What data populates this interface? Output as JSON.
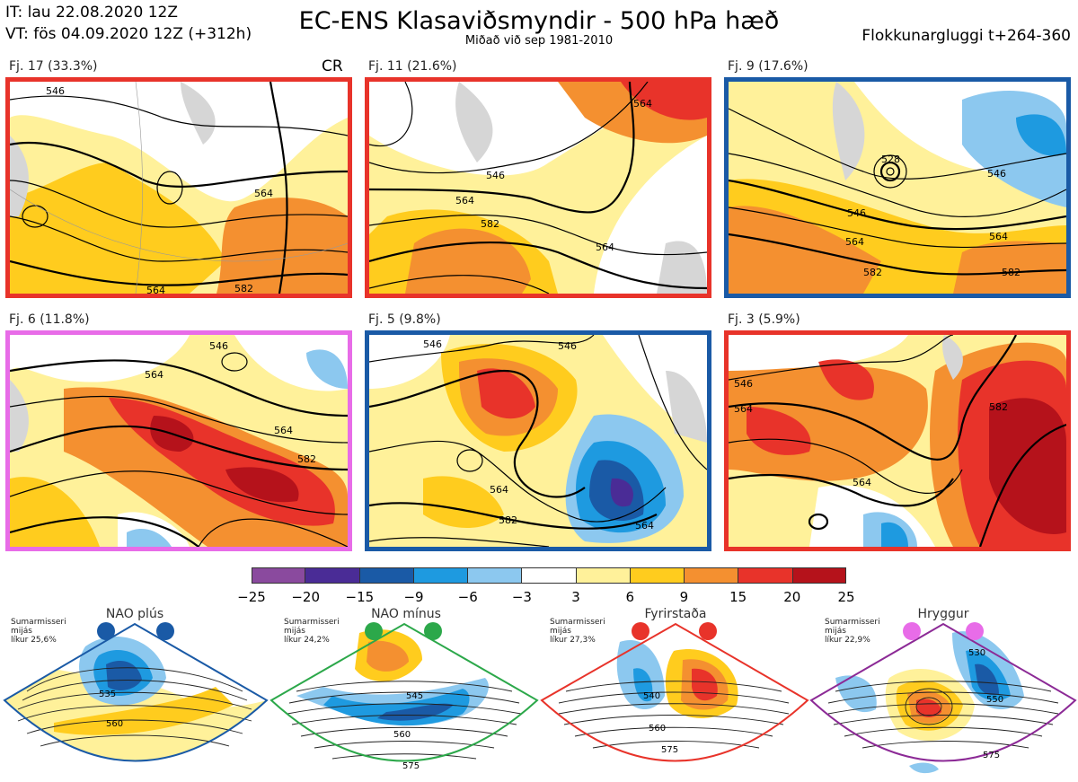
{
  "header": {
    "it_line": "IT: lau 22.08.2020 12Z",
    "vt_line": "VT: fös 04.09.2020 12Z  (+312h)",
    "title": "EC-ENS Klasaviðsmyndir - 500 hPa hæð",
    "subtitle": "Miðað við sep 1981-2010",
    "window": "Flokkunargluggi t+264-360"
  },
  "panels": [
    {
      "caption": "Fj. 17 (33.3%)",
      "border_color": "#e8332a",
      "tag": "CR",
      "contour_labels": [
        "546",
        "564",
        "564",
        "582"
      ]
    },
    {
      "caption": "Fj. 11 (21.6%)",
      "border_color": "#e8332a",
      "tag": "",
      "contour_labels": [
        "546",
        "564",
        "582",
        "564",
        "564"
      ]
    },
    {
      "caption": "Fj. 9 (17.6%)",
      "border_color": "#1a5aa6",
      "tag": "",
      "contour_labels": [
        "528",
        "546",
        "564",
        "582",
        "546",
        "564",
        "582"
      ]
    },
    {
      "caption": "Fj. 6 (11.8%)",
      "border_color": "#e86ce8",
      "tag": "",
      "contour_labels": [
        "564",
        "564",
        "582",
        "546"
      ]
    },
    {
      "caption": "Fj. 5 (9.8%)",
      "border_color": "#1a5aa6",
      "tag": "",
      "contour_labels": [
        "546",
        "564",
        "582",
        "564",
        "546"
      ]
    },
    {
      "caption": "Fj. 3 (5.9%)",
      "border_color": "#e8332a",
      "tag": "",
      "contour_labels": [
        "546",
        "564",
        "582",
        "564"
      ]
    }
  ],
  "colorbar": {
    "colors": [
      "#8a4a9e",
      "#4a2c96",
      "#1a5aa6",
      "#1e9ae0",
      "#8cc8ef",
      "#ffffff",
      "#fff19a",
      "#ffcc1e",
      "#f49030",
      "#e8332a",
      "#b5121b"
    ],
    "ticks": [
      "−25",
      "−20",
      "−15",
      "−9",
      "−6",
      "−3",
      "3",
      "6",
      "9",
      "15",
      "20",
      "25"
    ]
  },
  "regimes": [
    {
      "name": "NAO plús",
      "info": [
        "Sumarmisseri",
        "mijás",
        "líkur 25,6%"
      ],
      "frame_color": "#1a5aa6",
      "dot_color": "#1a5aa6",
      "labels": [
        "535",
        "560"
      ]
    },
    {
      "name": "NAO mínus",
      "info": [
        "Sumarmisseri",
        "mijás",
        "líkur 24,2%"
      ],
      "frame_color": "#2ca84a",
      "dot_color": "#2ca84a",
      "labels": [
        "545",
        "560",
        "575"
      ]
    },
    {
      "name": "Fyrirstaða",
      "info": [
        "Sumarmisseri",
        "mijás",
        "líkur 27,3%"
      ],
      "frame_color": "#e8332a",
      "dot_color": "#e8332a",
      "labels": [
        "540",
        "560",
        "575"
      ]
    },
    {
      "name": "Hryggur",
      "info": [
        "Sumarmisseri",
        "mijás",
        "líkur 22,9%"
      ],
      "frame_color": "#8c2a96",
      "dot_color": "#e86ce8",
      "labels": [
        "530",
        "550",
        "575"
      ]
    }
  ]
}
